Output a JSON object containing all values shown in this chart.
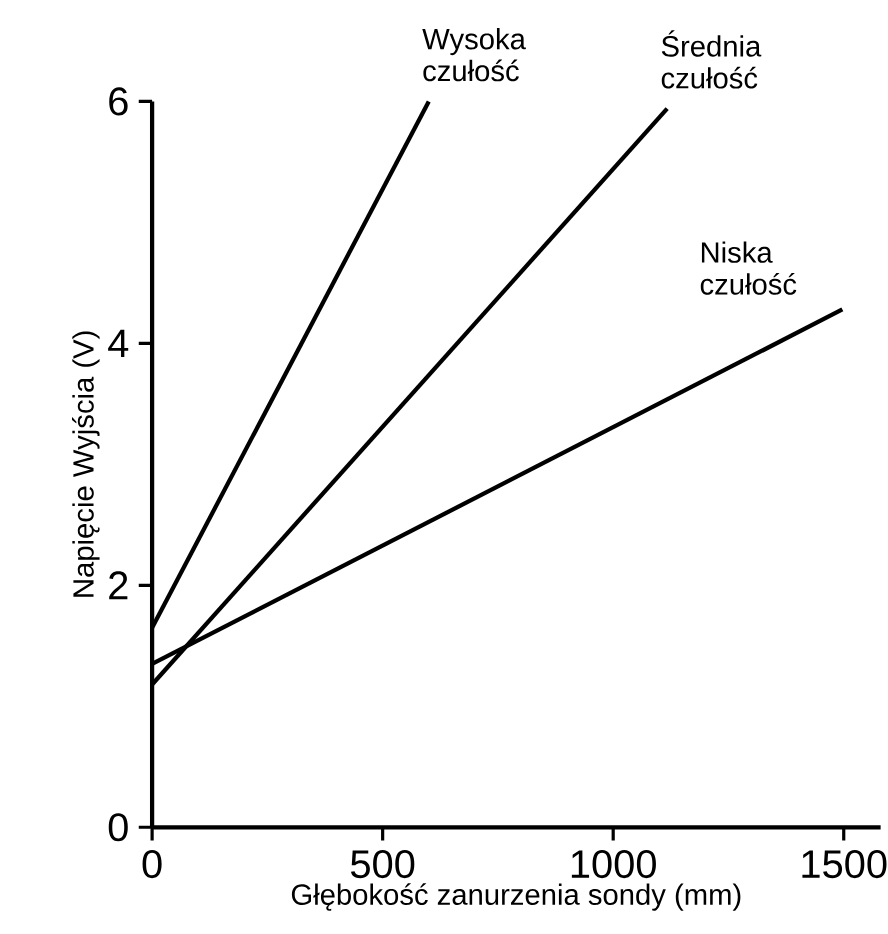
{
  "chart_data": {
    "type": "line",
    "xlabel": "Głębokość zanurzenia sondy (mm)",
    "ylabel": "Napięcie Wyjścia (V)",
    "xlim": [
      0,
      1580
    ],
    "ylim": [
      0,
      6
    ],
    "xticks": [
      0,
      500,
      1000,
      1500
    ],
    "yticks": [
      0,
      2,
      4,
      6
    ],
    "grid": false,
    "legend": false,
    "marker": "none",
    "line_style": "solid",
    "series": [
      {
        "name": "Wysoka czułość",
        "color": "#000000",
        "x": [
          0,
          600
        ],
        "values": [
          1.65,
          6
        ]
      },
      {
        "name": "Średnia czułość",
        "color": "#000000",
        "x": [
          0,
          1117
        ],
        "values": [
          1.18,
          5.94
        ]
      },
      {
        "name": "Niska czułość",
        "color": "#000000",
        "x": [
          0,
          1497
        ],
        "values": [
          1.35,
          4.28
        ]
      }
    ]
  }
}
